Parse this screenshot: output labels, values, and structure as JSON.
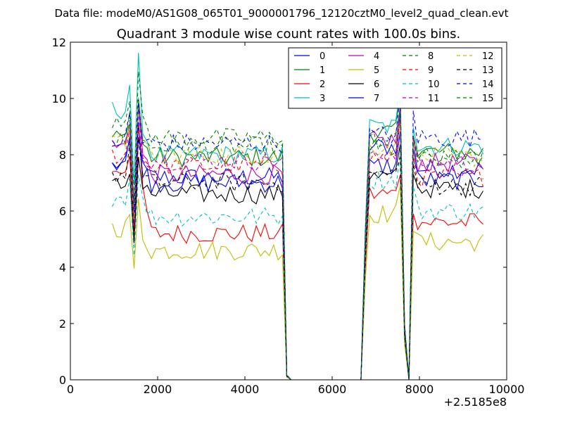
{
  "suptitle": "Data file: modeM0/AS1G08_065T01_9000001796_12120cztM0_level2_quad_clean.evt",
  "chart_data": {
    "type": "line",
    "title": "Quadrant 3 module wise count rates with 100.0s bins.",
    "xlabel": "",
    "ylabel": "",
    "x_offset_label": "+2.5185e8",
    "xlim": [
      0,
      10000
    ],
    "ylim": [
      0,
      12
    ],
    "x_ticks": [
      0,
      2000,
      4000,
      6000,
      8000,
      10000
    ],
    "y_ticks": [
      0,
      2,
      4,
      6,
      8,
      10,
      12
    ],
    "grid": false,
    "legend_position": "top-right",
    "legend_columns": 4,
    "segments": [
      {
        "start": 960,
        "end": 4960,
        "step": 100
      },
      {
        "start": 5060,
        "end": 6660,
        "step": 100
      },
      {
        "start": 6760,
        "end": 9460,
        "step": 100
      }
    ],
    "features": {
      "dips": [
        {
          "x": 1460,
          "depth": 0.3
        },
        {
          "x": 4960,
          "depth": 0.98
        },
        {
          "x": 5060,
          "depth": 1.0
        },
        {
          "x": 7660,
          "depth": 0.78
        },
        {
          "x": 7760,
          "depth": 1.0
        }
      ],
      "peaks": [
        {
          "x": 1360,
          "boost": 1.1
        },
        {
          "x": 1560,
          "boost": 1.17
        },
        {
          "x": 7560,
          "boost": 1.13
        },
        {
          "x": 7860,
          "boost": 1.12
        }
      ]
    },
    "series": [
      {
        "name": "0",
        "color": "#0000ff",
        "dash": "solid",
        "levels": [
          7.6,
          7.2,
          8.3,
          7.5
        ],
        "amp": 0.35
      },
      {
        "name": "1",
        "color": "#008000",
        "dash": "solid",
        "levels": [
          8.6,
          7.9,
          8.8,
          8.1
        ],
        "amp": 0.35
      },
      {
        "name": "2",
        "color": "#ff0000",
        "dash": "solid",
        "levels": [
          7.5,
          5.2,
          6.6,
          5.6
        ],
        "amp": 0.35
      },
      {
        "name": "3",
        "color": "#00bfbf",
        "dash": "solid",
        "levels": [
          9.6,
          8.0,
          9.0,
          8.3
        ],
        "amp": 0.35
      },
      {
        "name": "4",
        "color": "#bf00bf",
        "dash": "solid",
        "levels": [
          8.3,
          7.3,
          8.5,
          7.7
        ],
        "amp": 0.35
      },
      {
        "name": "5",
        "color": "#bfbf00",
        "dash": "solid",
        "levels": [
          5.4,
          4.6,
          5.9,
          4.9
        ],
        "amp": 0.35
      },
      {
        "name": "6",
        "color": "#000000",
        "dash": "solid",
        "levels": [
          6.9,
          6.6,
          7.2,
          6.8
        ],
        "amp": 0.35
      },
      {
        "name": "7",
        "color": "#0000ff",
        "dash": "solid",
        "levels": [
          7.8,
          7.0,
          7.6,
          7.1
        ],
        "amp": 0.35
      },
      {
        "name": "8",
        "color": "#008000",
        "dash": "dashed",
        "levels": [
          8.5,
          8.3,
          8.2,
          7.8
        ],
        "amp": 0.35
      },
      {
        "name": "9",
        "color": "#ff0000",
        "dash": "dashed",
        "levels": [
          8.0,
          7.6,
          7.9,
          7.2
        ],
        "amp": 0.35
      },
      {
        "name": "10",
        "color": "#00bfbf",
        "dash": "dashed",
        "levels": [
          6.5,
          5.8,
          7.1,
          6.0
        ],
        "amp": 0.35
      },
      {
        "name": "11",
        "color": "#bf00bf",
        "dash": "dashed",
        "levels": [
          8.2,
          7.8,
          8.1,
          7.7
        ],
        "amp": 0.35
      },
      {
        "name": "12",
        "color": "#bfbf00",
        "dash": "dashed",
        "levels": [
          8.4,
          8.0,
          8.3,
          7.9
        ],
        "amp": 0.35
      },
      {
        "name": "13",
        "color": "#000000",
        "dash": "dashed",
        "levels": [
          7.3,
          7.0,
          7.3,
          6.9
        ],
        "amp": 0.35
      },
      {
        "name": "14",
        "color": "#0000ff",
        "dash": "dashed",
        "levels": [
          8.5,
          8.4,
          8.7,
          8.6
        ],
        "amp": 0.35
      },
      {
        "name": "15",
        "color": "#008000",
        "dash": "dashed",
        "levels": [
          9.3,
          8.6,
          8.5,
          7.9
        ],
        "amp": 0.35
      }
    ]
  }
}
